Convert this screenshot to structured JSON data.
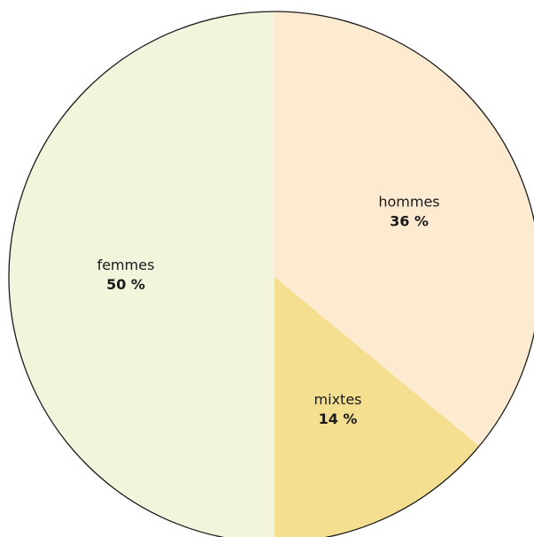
{
  "chart_data": {
    "type": "pie",
    "title": "",
    "start_angle_deg": 0,
    "direction": "clockwise",
    "slices": [
      {
        "label": "hommes",
        "value": 36,
        "value_label": "36 %",
        "color": "#fdebd1"
      },
      {
        "label": "mixtes",
        "value": 14,
        "value_label": "14 %",
        "color": "#f4df90"
      },
      {
        "label": "femmes",
        "value": 50,
        "value_label": "50 %",
        "color": "#f2f4dc"
      }
    ],
    "outline_color": "#1a1a1a"
  }
}
